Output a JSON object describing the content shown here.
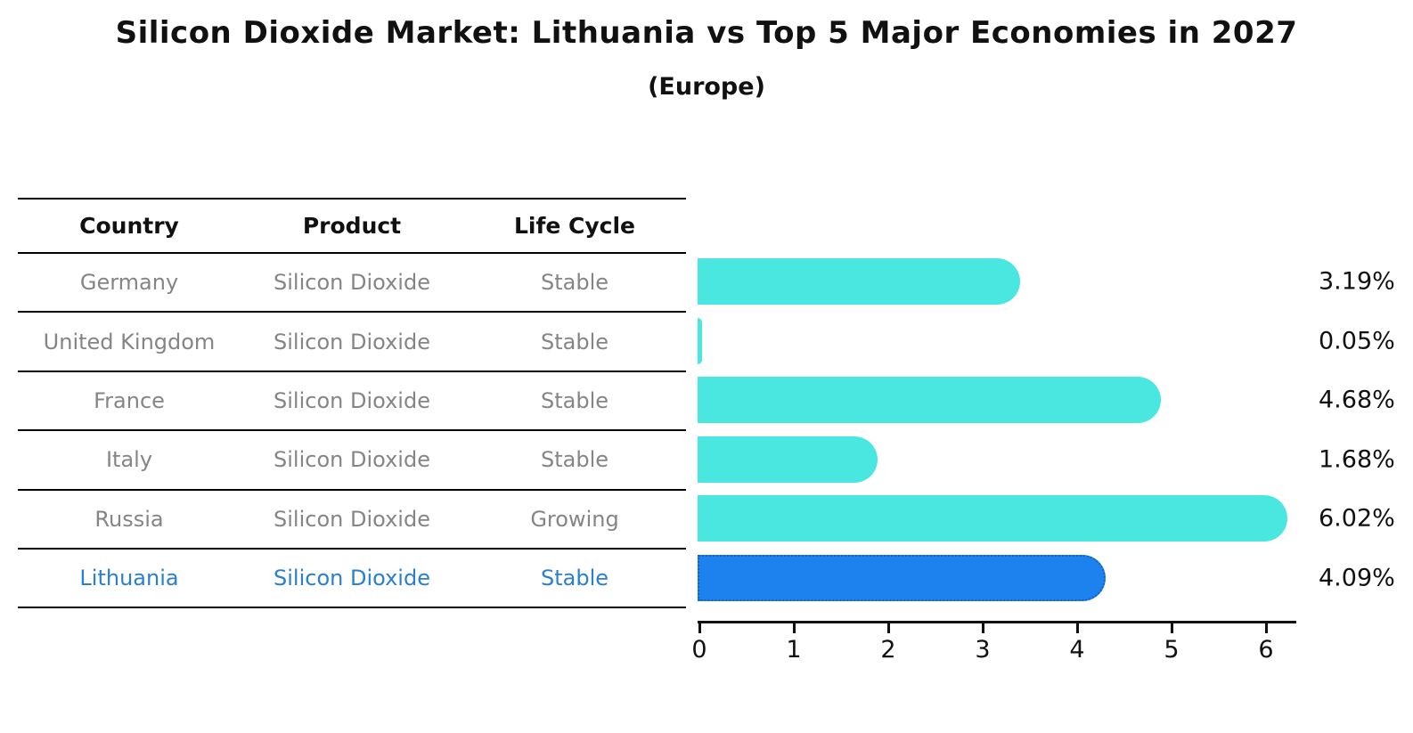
{
  "title": "Silicon Dioxide Market: Lithuania vs Top 5 Major Economies in 2027",
  "subtitle": "(Europe)",
  "table": {
    "headers": [
      "Country",
      "Product",
      "Life Cycle"
    ],
    "rows": [
      {
        "country": "Germany",
        "product": "Silicon Dioxide",
        "life_cycle": "Stable",
        "highlight": false
      },
      {
        "country": "United Kingdom",
        "product": "Silicon Dioxide",
        "life_cycle": "Stable",
        "highlight": false
      },
      {
        "country": "France",
        "product": "Silicon Dioxide",
        "life_cycle": "Stable",
        "highlight": false
      },
      {
        "country": "Italy",
        "product": "Silicon Dioxide",
        "life_cycle": "Stable",
        "highlight": false
      },
      {
        "country": "Russia",
        "product": "Silicon Dioxide",
        "life_cycle": "Growing",
        "highlight": false
      },
      {
        "country": "Lithuania",
        "product": "Silicon Dioxide",
        "life_cycle": "Stable",
        "highlight": true
      }
    ]
  },
  "chart_data": {
    "type": "bar",
    "orientation": "horizontal",
    "title": "Silicon Dioxide Market: Lithuania vs Top 5 Major Economies in 2027 (Europe)",
    "categories": [
      "Germany",
      "United Kingdom",
      "France",
      "Italy",
      "Russia",
      "Lithuania"
    ],
    "values": [
      3.19,
      0.05,
      4.68,
      1.68,
      6.02,
      4.09
    ],
    "value_labels": [
      "3.19%",
      "0.05%",
      "4.68%",
      "1.68%",
      "6.02%",
      "4.09%"
    ],
    "unit": "%",
    "highlighted_category": "Lithuania",
    "xticks": [
      "0",
      "1",
      "2",
      "3",
      "4",
      "5",
      "6"
    ],
    "xlim": [
      0,
      6.34
    ],
    "grid": false,
    "legend": false,
    "colors": {
      "bar": "#4ae6e0",
      "highlight_bar": "#1e82ee",
      "highlight_border": "#1161cb",
      "highlight_text": "#2a7fd0",
      "table_text": "#858585",
      "text": "#111111"
    }
  }
}
